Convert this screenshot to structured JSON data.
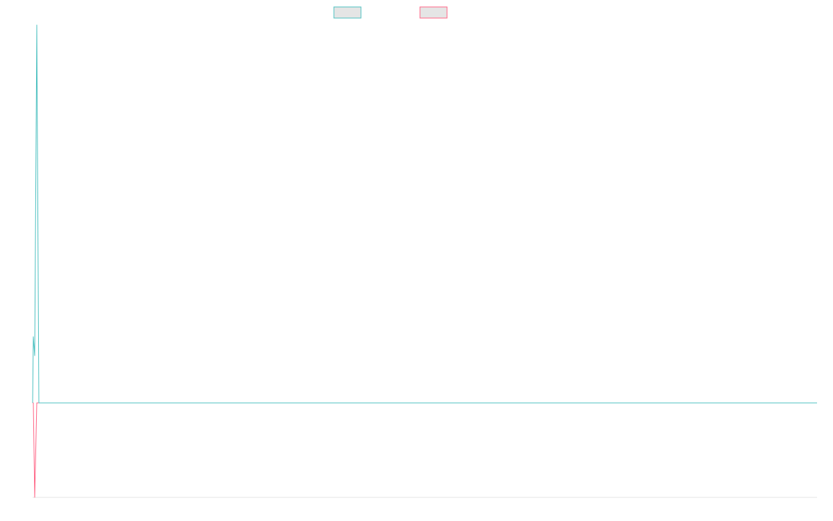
{
  "chart_data": {
    "type": "line",
    "title": "",
    "xlabel": "",
    "ylabel": "",
    "grid": false,
    "legend_position": "top",
    "x": [
      0,
      1,
      2,
      3,
      4,
      5,
      6,
      7,
      8,
      9,
      10,
      11,
      12,
      13,
      14,
      15,
      16,
      17,
      18,
      19,
      20,
      21,
      22,
      23,
      24,
      25,
      26,
      27,
      28,
      29,
      30,
      31,
      32,
      33,
      34,
      35,
      36,
      37,
      38,
      39,
      40,
      41,
      42,
      43,
      44,
      45,
      46,
      47,
      48,
      49,
      50,
      51,
      52,
      53,
      54,
      55,
      56,
      57,
      58,
      59,
      60,
      61,
      62,
      63,
      64,
      65,
      66,
      67,
      68,
      69,
      70,
      71,
      72,
      73,
      74,
      75,
      76,
      77,
      78,
      79,
      80,
      81,
      82,
      83,
      84,
      85,
      86,
      87,
      88,
      89,
      90,
      91,
      92,
      93,
      94,
      95,
      96,
      97,
      98,
      99,
      100,
      101,
      102,
      103,
      104,
      105,
      106,
      107,
      108,
      109,
      110,
      111,
      112,
      113,
      114,
      115,
      116,
      117,
      118,
      119,
      120,
      121,
      122,
      123,
      124,
      125,
      126,
      127,
      128,
      129,
      130,
      131,
      132,
      133,
      134,
      135,
      136,
      137,
      138,
      139,
      140,
      141,
      142,
      143,
      144,
      145,
      146,
      147,
      148,
      149,
      150,
      151,
      152,
      153,
      154,
      155,
      156,
      157,
      158,
      159,
      160,
      161,
      162,
      163,
      164,
      165,
      166,
      167,
      168,
      169,
      170,
      171,
      172,
      173,
      174,
      175,
      176,
      177,
      178,
      179,
      180,
      181,
      182,
      183,
      184,
      185,
      186,
      187,
      188,
      189,
      190,
      191,
      192,
      193,
      194,
      195,
      196,
      197,
      198,
      199,
      200,
      201,
      202,
      203,
      204,
      205,
      206,
      207,
      208,
      209,
      210,
      211,
      212,
      213,
      214,
      215,
      216,
      217,
      218,
      219,
      220,
      221,
      222,
      223,
      224,
      225,
      226,
      227,
      228,
      229,
      230,
      231,
      232,
      233,
      234,
      235,
      236,
      237,
      238,
      239,
      240,
      241,
      242,
      243,
      244,
      245,
      246,
      247,
      248,
      249,
      250,
      251,
      252,
      253,
      254,
      255,
      256,
      257,
      258,
      259,
      260,
      261,
      262,
      263,
      264,
      265,
      266,
      267,
      268,
      269,
      270,
      271,
      272,
      273,
      274,
      275,
      276,
      277,
      278,
      279,
      280,
      281,
      282,
      283,
      284,
      285,
      286,
      287,
      288,
      289,
      290,
      291,
      292,
      293,
      294,
      295,
      296,
      297,
      298,
      299,
      300,
      301,
      302,
      303,
      304,
      305,
      306,
      307,
      308,
      309,
      310,
      311,
      312,
      313,
      314,
      315,
      316,
      317,
      318,
      319,
      320,
      321,
      322,
      323,
      324,
      325,
      326,
      327,
      328,
      329,
      330,
      331,
      332,
      333,
      334,
      335,
      336,
      337,
      338,
      339,
      340,
      341,
      342,
      343,
      344,
      345,
      346,
      347,
      348,
      349,
      350,
      351,
      352,
      353,
      354,
      355,
      356,
      357,
      358,
      359,
      360,
      361,
      362,
      363,
      364,
      365,
      366,
      367,
      368,
      369,
      370,
      371,
      372,
      373,
      374,
      375,
      376,
      377,
      378,
      379,
      380,
      381,
      382,
      383,
      384,
      385,
      386,
      387,
      388,
      389,
      390,
      391,
      392,
      393,
      394,
      395,
      396,
      397,
      398,
      399,
      400,
      401,
      402,
      403,
      404,
      405,
      406,
      407,
      408,
      409,
      410,
      411,
      412,
      413,
      414,
      415,
      416,
      417,
      418,
      419,
      420,
      421,
      422,
      423,
      424,
      425,
      426,
      427,
      428,
      429,
      430,
      431,
      432,
      433,
      434,
      435,
      436,
      437,
      438,
      439,
      440,
      441,
      442,
      443,
      444,
      445,
      446,
      447,
      448,
      449,
      450,
      451,
      452,
      453,
      454,
      455,
      456,
      457,
      458,
      459,
      460,
      461,
      462,
      463,
      464,
      465,
      466,
      467,
      468,
      469,
      470,
      471,
      472,
      473,
      474,
      475,
      476,
      477,
      478,
      479,
      480,
      481,
      482,
      483,
      484,
      485,
      486,
      487,
      488,
      489,
      490,
      491,
      492,
      493,
      494,
      495,
      496,
      497,
      498,
      499,
      500,
      501,
      502,
      503,
      504,
      505,
      506,
      507,
      508,
      509,
      510,
      511,
      512,
      513,
      514,
      515,
      516,
      517,
      518,
      519,
      520,
      521,
      522,
      523,
      524,
      525,
      526,
      527,
      528,
      529,
      530,
      531,
      532,
      533,
      534,
      535,
      536,
      537,
      538,
      539,
      540,
      541,
      542,
      543,
      544,
      545,
      546,
      547,
      548,
      549,
      550,
      551,
      552,
      553,
      554,
      555,
      556,
      557,
      558,
      559,
      560,
      561,
      562,
      563,
      564,
      565,
      566,
      567,
      568,
      569,
      570,
      571,
      572,
      573,
      574,
      575,
      576,
      577,
      578,
      579,
      580,
      581,
      582,
      583,
      584,
      585,
      586,
      587,
      588,
      589,
      590,
      591,
      592,
      593,
      594,
      595,
      596,
      597,
      598,
      599,
      600,
      601,
      602,
      603,
      604,
      605,
      606,
      607,
      608,
      609,
      610,
      611,
      612,
      613,
      614,
      615,
      616,
      617,
      618,
      619,
      620,
      621,
      622,
      623,
      624,
      625,
      626,
      627,
      628,
      629,
      630,
      631,
      632,
      633,
      634,
      635,
      636,
      637,
      638,
      639,
      640,
      641,
      642,
      643,
      644,
      645,
      646,
      647,
      648,
      649,
      650,
      651,
      652,
      653,
      654,
      655,
      656,
      657,
      658,
      659,
      660,
      661,
      662,
      663,
      664,
      665,
      666,
      667,
      668,
      669,
      670,
      671,
      672,
      673,
      674,
      675,
      676,
      677,
      678,
      679,
      680,
      681,
      682,
      683,
      684,
      685,
      686,
      687,
      688,
      689,
      690,
      691,
      692,
      693,
      694,
      695,
      696,
      697,
      698,
      699,
      700,
      701,
      702,
      703,
      704,
      705,
      706,
      707,
      708,
      709,
      710,
      711,
      712,
      713,
      714,
      715,
      716,
      717,
      718,
      719,
      720,
      721,
      722,
      723,
      724,
      725,
      726,
      727,
      728,
      729,
      730,
      731,
      732,
      733,
      734,
      735,
      736,
      737,
      738,
      739,
      740,
      741,
      742,
      743,
      744,
      745,
      746,
      747,
      748,
      749,
      750,
      751,
      752,
      753,
      754,
      755,
      756,
      757,
      758,
      759,
      760,
      761,
      762,
      763,
      764,
      765,
      766,
      767,
      768,
      769,
      770,
      771,
      772,
      773,
      774,
      775,
      776,
      777,
      778,
      779,
      780,
      781,
      782,
      783,
      784,
      785,
      786,
      787,
      788,
      789,
      790,
      791,
      792,
      793,
      794,
      795,
      796,
      797,
      798,
      799,
      800,
      801,
      802,
      803,
      804,
      805,
      806,
      807,
      808,
      809,
      810,
      811,
      812,
      813,
      814,
      815,
      816,
      817,
      818,
      819,
      820,
      821,
      822,
      823,
      824,
      825,
      826,
      827,
      828,
      829,
      830,
      831,
      832,
      833,
      834,
      835,
      836,
      837,
      838,
      839,
      840,
      841,
      842,
      843,
      844,
      845,
      846,
      847,
      848,
      849,
      850,
      851,
      852,
      853,
      854,
      855,
      856,
      857,
      858,
      859,
      860,
      861,
      862,
      863,
      864,
      865,
      866,
      867,
      868,
      869,
      870,
      871,
      872,
      873,
      874,
      875,
      876,
      877,
      878,
      879,
      880,
      881,
      882,
      883,
      884,
      885,
      886,
      887,
      888,
      889,
      890,
      891,
      892,
      893,
      894,
      895,
      896,
      897,
      898,
      899,
      900,
      901,
      902,
      903,
      904,
      905,
      906,
      907,
      908,
      909,
      910,
      911,
      912,
      913,
      914,
      915,
      916,
      917,
      918,
      919,
      920,
      921,
      922,
      923,
      924,
      925,
      926,
      927,
      928,
      929,
      930,
      931,
      932,
      933,
      934,
      935,
      936,
      937,
      938,
      939,
      940,
      941,
      942,
      943,
      944,
      945,
      946,
      947,
      948,
      949,
      950,
      951,
      952,
      953,
      954,
      955,
      956,
      957,
      958,
      959,
      960,
      961,
      962,
      963,
      964,
      965,
      966,
      967,
      968,
      969,
      970,
      971,
      972,
      973,
      974,
      975,
      976,
      977,
      978,
      979,
      980,
      981,
      982,
      983,
      984,
      985,
      986,
      987,
      988,
      989,
      990,
      991,
      992,
      993,
      994,
      995,
      996,
      997,
      998,
      999,
      1000,
      1001,
      1002,
      1003,
      1004,
      1005,
      1006,
      1007,
      1008,
      1009,
      1010,
      1011,
      1012,
      1013,
      1014,
      1015,
      1016,
      1017,
      1018,
      1019,
      1020,
      1021,
      1022,
      1023,
      1024,
      1025,
      1026,
      1027,
      1028,
      1029,
      1030,
      1031,
      1032,
      1033,
      1034,
      1035,
      1036,
      1037,
      1038,
      1039,
      1040,
      1041,
      1042,
      1043,
      1044,
      1045,
      1046,
      1047,
      1048,
      1049,
      1050,
      1051,
      1052,
      1053,
      1054,
      1055,
      1056,
      1057,
      1058,
      1059,
      1060,
      1061,
      1062,
      1063,
      1064,
      1065,
      1066,
      1067,
      1068,
      1069,
      1070,
      1071,
      1072,
      1073,
      1074,
      1075,
      1076,
      1077,
      1078,
      1079,
      1080,
      1081,
      1082,
      1083,
      1084,
      1085,
      1086,
      1087,
      1088,
      1089,
      1090,
      1091,
      1092,
      1093,
      1094,
      1095,
      1096,
      1097,
      1098,
      1099,
      1100,
      1101,
      1102,
      1103,
      1104,
      1105,
      1106,
      1107,
      1108,
      1109,
      1110,
      1111,
      1112,
      1113,
      1114,
      1115,
      1116,
      1117,
      1118,
      1119,
      1120,
      1121,
      1122,
      1123,
      1124,
      1125,
      1126,
      1127,
      1128,
      1129,
      1130
    ],
    "ylim": [
      -1,
      4
    ],
    "series": [
      {
        "color": "#4bc0c0",
        "fill": "#e5e5e5",
        "peak": [
          0,
          0.7,
          0.5,
          4,
          0
        ],
        "baseline": 0
      },
      {
        "color": "#ff6384",
        "fill": "#e5e5e5",
        "peak": [
          0,
          0,
          -1,
          0,
          0
        ],
        "baseline": 0
      }
    ]
  }
}
